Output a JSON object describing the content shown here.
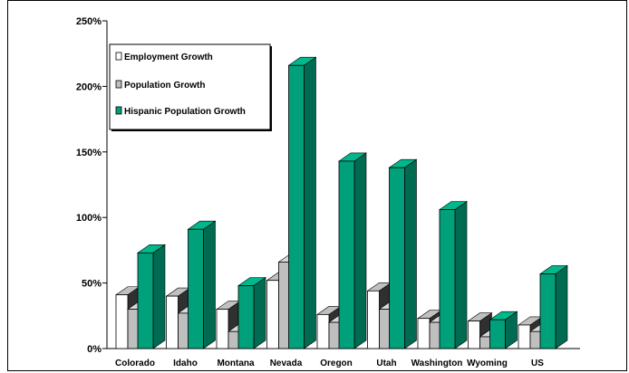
{
  "chart_data": {
    "type": "bar",
    "title": "",
    "xlabel": "",
    "ylabel": "",
    "ylim": [
      0,
      250
    ],
    "y_ticks": [
      "0%",
      "50%",
      "100%",
      "150%",
      "200%",
      "250%"
    ],
    "y_tick_values": [
      0,
      50,
      100,
      150,
      200,
      250
    ],
    "categories": [
      "Colorado",
      "Idaho",
      "Montana",
      "Nevada",
      "Oregon",
      "Utah",
      "Washington",
      "Wyoming",
      "US"
    ],
    "series": [
      {
        "name": "Employment Growth",
        "values": [
          41,
          40,
          30,
          52,
          26,
          44,
          23,
          21,
          18
        ],
        "color": "#ffffff"
      },
      {
        "name": "Population Growth",
        "values": [
          30,
          27,
          13,
          66,
          20,
          30,
          20,
          9,
          13
        ],
        "color": "#bfbfbf"
      },
      {
        "name": "Hispanic Population Growth",
        "values": [
          73,
          91,
          48,
          216,
          143,
          138,
          106,
          22,
          57
        ],
        "color": "#00a07a"
      }
    ],
    "legend_position": "top-left",
    "grid": false
  }
}
